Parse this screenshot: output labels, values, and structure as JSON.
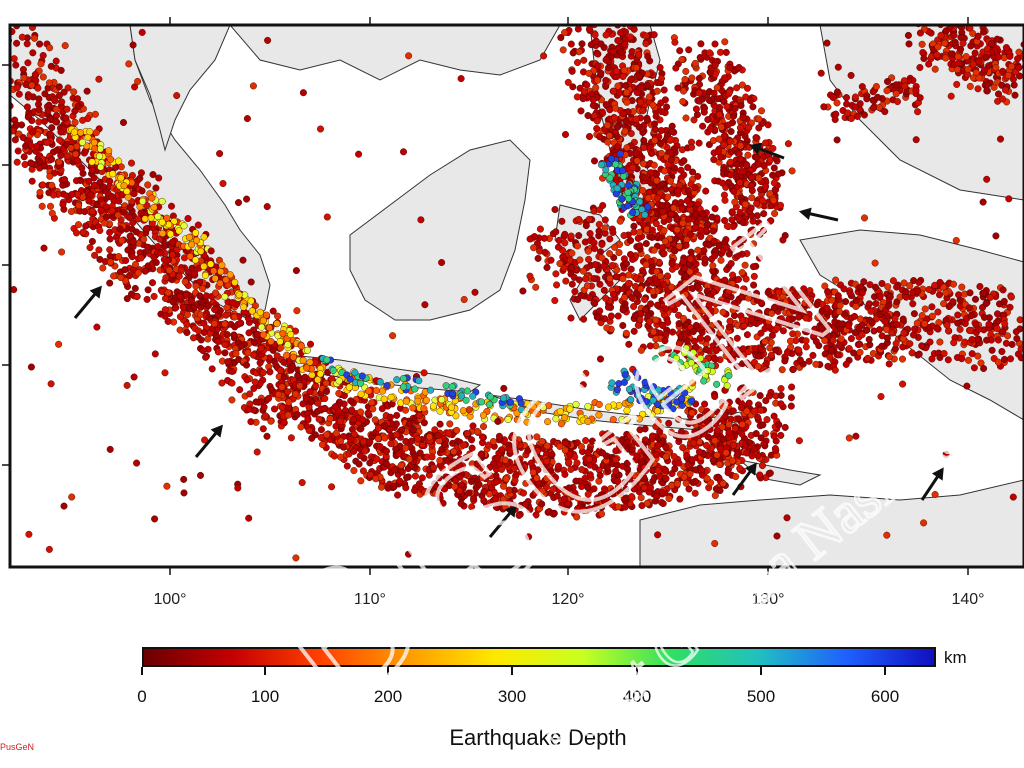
{
  "map": {
    "longitude_labels": [
      "100°",
      "110°",
      "120°",
      "130°",
      "140°"
    ],
    "colors": {
      "land": "#e8e8e8",
      "coast": "#333333",
      "sea": "#ffffff",
      "quake_shallow": "#b30000",
      "arrow": "#111111"
    }
  },
  "colorbar": {
    "title": "Earthquake Depth",
    "unit": "km",
    "ticks": [
      "0",
      "100",
      "200",
      "300",
      "400",
      "500",
      "600"
    ],
    "gradient": [
      "#6b0000",
      "#c40000",
      "#ff4000",
      "#ff9a00",
      "#ffe800",
      "#c8ff20",
      "#30e060",
      "#20c0c0",
      "#2060ff",
      "#1010c0"
    ]
  },
  "watermark": {
    "main": "BISGeN",
    "sub": "Pusat Gempa Nasional"
  },
  "credit": "PusGeN",
  "icons": [
    "tectonic-motion-arrow-icon"
  ]
}
